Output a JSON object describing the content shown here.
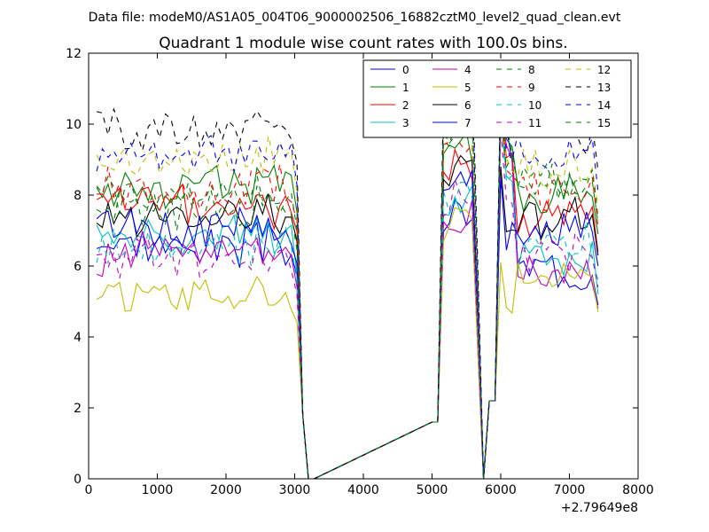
{
  "suptitle": "Data file: modeM0/AS1A05_004T06_9000002506_16882cztM0_level2_quad_clean.evt",
  "chart_data": {
    "type": "line",
    "title": "Quadrant 1 module wise count rates with 100.0s bins.",
    "xlabel": "",
    "ylabel": "",
    "x_offset_label": "+2.79649e8",
    "xlim": [
      0,
      8000
    ],
    "ylim": [
      0,
      12
    ],
    "xticks": [
      0,
      1000,
      2000,
      3000,
      4000,
      5000,
      6000,
      7000,
      8000
    ],
    "yticks": [
      0,
      2,
      4,
      6,
      8,
      10,
      12
    ],
    "x": [
      117,
      200,
      283,
      367,
      450,
      533,
      617,
      700,
      783,
      867,
      950,
      1033,
      1117,
      1200,
      1283,
      1367,
      1450,
      1533,
      1617,
      1700,
      1783,
      1867,
      1950,
      2033,
      2117,
      2200,
      2283,
      2367,
      2450,
      2533,
      2617,
      2700,
      2783,
      2867,
      2950,
      3033,
      3117,
      3200,
      3283,
      5000,
      5083,
      5167,
      5250,
      5333,
      5417,
      5500,
      5583,
      5667,
      5750,
      5833,
      5917,
      6000,
      6083,
      6167,
      6250,
      6333,
      6417,
      6500,
      6583,
      6667,
      6750,
      6833,
      6917,
      7000,
      7083,
      7167,
      7250,
      7333,
      7417
    ],
    "legend": {
      "location": "upper right",
      "columns": 4
    },
    "series": [
      {
        "name": "0",
        "color": "#0000ff",
        "linestyle": "solid",
        "level": 6.6,
        "gap_level": 6.1,
        "peak": 11.0
      },
      {
        "name": "1",
        "color": "#008000",
        "linestyle": "solid",
        "level": 8.3,
        "gap_level": 8.1,
        "peak": 10.9
      },
      {
        "name": "2",
        "color": "#ff0000",
        "linestyle": "solid",
        "level": 7.7,
        "gap_level": 7.6,
        "peak": 10.6
      },
      {
        "name": "3",
        "color": "#00bfbf",
        "linestyle": "solid",
        "level": 6.8,
        "gap_level": 6.4,
        "peak": 10.3
      },
      {
        "name": "4",
        "color": "#bf00bf",
        "linestyle": "solid",
        "level": 6.4,
        "gap_level": 6.0,
        "peak": 10.4
      },
      {
        "name": "5",
        "color": "#bfbf00",
        "linestyle": "solid",
        "level": 5.2,
        "gap_level": 5.9,
        "peak": 6.1
      },
      {
        "name": "6",
        "color": "#000000",
        "linestyle": "solid",
        "level": 7.4,
        "gap_level": 7.5,
        "peak": 8.8
      },
      {
        "name": "7",
        "color": "#0000ff",
        "linestyle": "solid",
        "level": 7.1,
        "gap_level": 7.2,
        "peak": 8.5
      },
      {
        "name": "8",
        "color": "#008000",
        "linestyle": "dashed",
        "level": 8.0,
        "gap_level": 8.4,
        "peak": 11.3
      },
      {
        "name": "9",
        "color": "#ff0000",
        "linestyle": "dashed",
        "level": 8.2,
        "gap_level": 8.3,
        "peak": 10.2
      },
      {
        "name": "10",
        "color": "#00bfbf",
        "linestyle": "dashed",
        "level": 6.4,
        "gap_level": 6.8,
        "peak": 10.1
      },
      {
        "name": "11",
        "color": "#bf00bf",
        "linestyle": "dashed",
        "level": 6.2,
        "gap_level": 6.6,
        "peak": 9.8
      },
      {
        "name": "12",
        "color": "#bfbf00",
        "linestyle": "dashed",
        "level": 9.0,
        "gap_level": 8.9,
        "peak": 10.2
      },
      {
        "name": "13",
        "color": "#000000",
        "linestyle": "dashed",
        "level": 9.8,
        "gap_level": 9.9,
        "peak": 11.4
      },
      {
        "name": "14",
        "color": "#0000ff",
        "linestyle": "dashed",
        "level": 9.1,
        "gap_level": 9.3,
        "peak": 10.9
      },
      {
        "name": "15",
        "color": "#008000",
        "linestyle": "dashed",
        "level": 7.6,
        "gap_level": 8.6,
        "peak": 10.6
      }
    ]
  }
}
